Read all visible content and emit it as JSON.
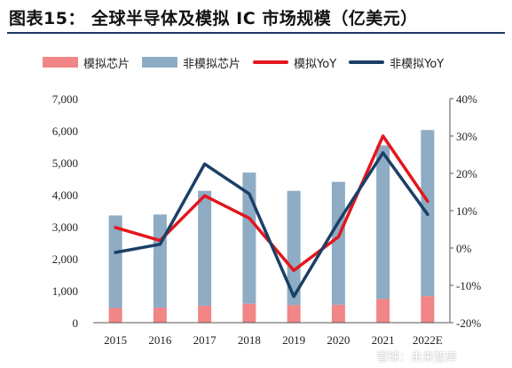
{
  "header": {
    "title": "图表15：  全球半导体及模拟 IC 市场规模（亿美元）"
  },
  "watermark": "雪球：未来智库",
  "chart_data": {
    "type": "bar+line",
    "title": "",
    "xlabel": "",
    "ylabel": "",
    "categories": [
      "2015",
      "2016",
      "2017",
      "2018",
      "2019",
      "2020",
      "2021",
      "2022E"
    ],
    "series": [
      {
        "name": "模拟芯片",
        "type": "stacked-bar",
        "axis": "left",
        "color": "#f28585",
        "values": [
          460,
          470,
          530,
          590,
          550,
          560,
          740,
          830
        ]
      },
      {
        "name": "非模拟芯片",
        "type": "stacked-bar",
        "axis": "left",
        "color": "#8eacc4",
        "values": [
          2890,
          2910,
          3590,
          4100,
          3570,
          3840,
          4800,
          5190
        ]
      },
      {
        "name": "模拟YoY",
        "type": "line",
        "axis": "right",
        "color": "#e3171d",
        "values": [
          5.5,
          2.0,
          14.0,
          8.0,
          -6.0,
          3.0,
          30.0,
          12.5
        ]
      },
      {
        "name": "非模拟YoY",
        "type": "line",
        "axis": "right",
        "color": "#1b3f66",
        "values": [
          -1.2,
          1.0,
          22.5,
          14.5,
          -13.0,
          7.0,
          25.5,
          9.0
        ]
      }
    ],
    "y_left": {
      "min": 0,
      "max": 7000,
      "ticks": [
        "0",
        "1,000",
        "2,000",
        "3,000",
        "4,000",
        "5,000",
        "6,000",
        "7,000"
      ]
    },
    "y_right": {
      "min": -20,
      "max": 40,
      "ticks": [
        "-20%",
        "-10%",
        "0%",
        "10%",
        "20%",
        "30%",
        "40%"
      ]
    },
    "grid": false,
    "legend": "top"
  }
}
